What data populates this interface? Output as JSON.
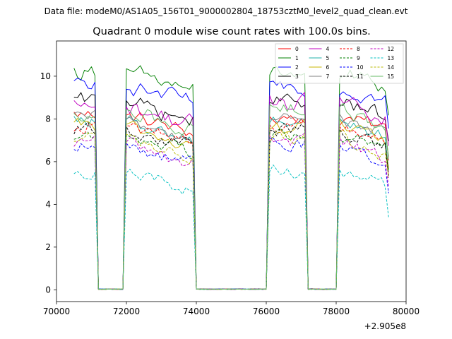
{
  "figure": {
    "suptitle": "Data file: modeM0/AS1A05_156T01_9000002804_18753cztM0_level2_quad_clean.evt",
    "offset_label": "+2.905e8"
  },
  "chart_data": {
    "type": "line",
    "title": "Quadrant 0 module wise count rates with 100.0s bins.",
    "xlabel": "",
    "ylabel": "",
    "xlim": [
      70000,
      80000
    ],
    "ylim": [
      -0.55,
      11.65
    ],
    "x_offset": 290500000,
    "xticks": [
      70000,
      72000,
      74000,
      76000,
      78000,
      80000
    ],
    "xtick_labels": [
      "70000",
      "72000",
      "74000",
      "76000",
      "78000",
      "80000"
    ],
    "yticks": [
      0,
      2,
      4,
      6,
      8,
      10
    ],
    "ytick_labels": [
      "0",
      "2",
      "4",
      "6",
      "8",
      "10"
    ],
    "legend_location": "top-right",
    "grid": false,
    "segments": [
      {
        "start": 70500,
        "end": 71100
      },
      {
        "start": 71950,
        "end": 73950
      },
      {
        "start": 76050,
        "end": 77150
      },
      {
        "start": 78050,
        "end": 79550
      }
    ],
    "gaps": [
      {
        "from": 71250,
        "to": 71750
      },
      {
        "from": 74050,
        "to": 75850
      },
      {
        "from": 77450,
        "to": 77950
      }
    ],
    "series": [
      {
        "name": "0",
        "color": "#ff0000",
        "dash": "solid",
        "level": 8.2,
        "variation": 0.35
      },
      {
        "name": "1",
        "color": "#008000",
        "dash": "solid",
        "level": 10.2,
        "variation": 0.45
      },
      {
        "name": "2",
        "color": "#0000ff",
        "dash": "solid",
        "level": 9.6,
        "variation": 0.4
      },
      {
        "name": "3",
        "color": "#000000",
        "dash": "solid",
        "level": 8.8,
        "variation": 0.4
      },
      {
        "name": "4",
        "color": "#c000c0",
        "dash": "solid",
        "level": 8.6,
        "variation": 0.45
      },
      {
        "name": "5",
        "color": "#20b2aa",
        "dash": "solid",
        "level": 7.9,
        "variation": 0.35
      },
      {
        "name": "6",
        "color": "#c8b400",
        "dash": "solid",
        "level": 7.6,
        "variation": 0.35
      },
      {
        "name": "7",
        "color": "#808080",
        "dash": "solid",
        "level": 8.0,
        "variation": 0.35
      },
      {
        "name": "8",
        "color": "#ff0000",
        "dash": "dashed",
        "level": 7.7,
        "variation": 0.35
      },
      {
        "name": "9",
        "color": "#008000",
        "dash": "dashed",
        "level": 7.3,
        "variation": 0.35
      },
      {
        "name": "10",
        "color": "#0000ff",
        "dash": "dashed",
        "level": 6.8,
        "variation": 0.35
      },
      {
        "name": "11",
        "color": "#000000",
        "dash": "dashed",
        "level": 7.5,
        "variation": 0.35
      },
      {
        "name": "12",
        "color": "#c000c0",
        "dash": "dashed",
        "level": 6.9,
        "variation": 0.35
      },
      {
        "name": "13",
        "color": "#00c0c0",
        "dash": "dashed",
        "level": 5.6,
        "variation": 0.35
      },
      {
        "name": "14",
        "color": "#b8b800",
        "dash": "dashed",
        "level": 7.1,
        "variation": 0.35
      },
      {
        "name": "15",
        "color": "#66bb66",
        "dash": "solid",
        "level": 8.4,
        "variation": 0.4
      }
    ]
  }
}
